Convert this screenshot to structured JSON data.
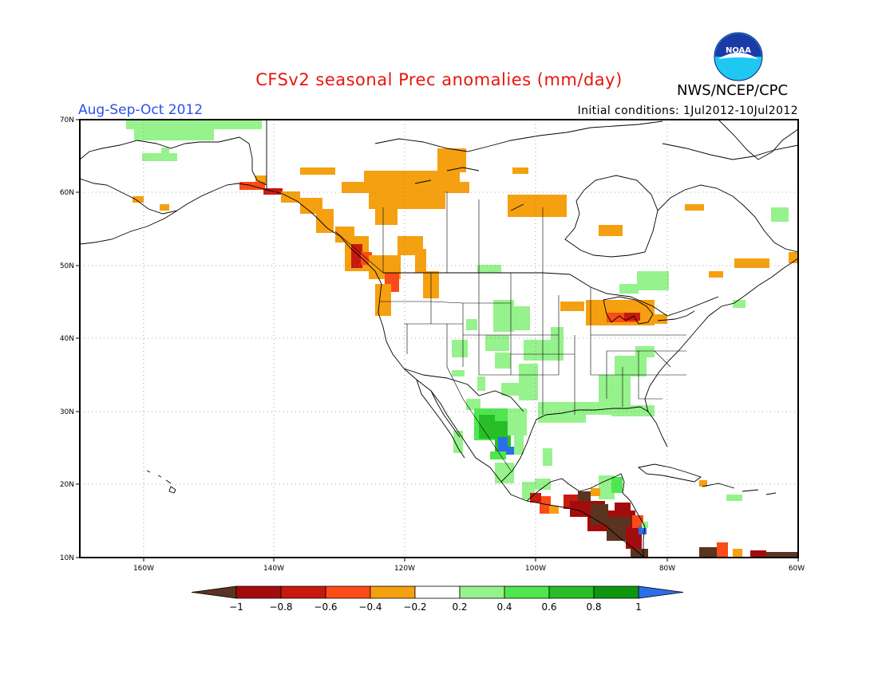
{
  "figure": {
    "title": "CFSv2 seasonal Prec anomalies (mm/day)",
    "season": "Aug-Sep-Oct 2012",
    "initial_conditions": "Initial conditions: 1Jul2012-10Jul2012",
    "agency": "NWS/NCEP/CPC",
    "logo_text": "NOAA"
  },
  "map": {
    "lon_range": [
      -172,
      -60
    ],
    "lat_range": [
      10,
      70
    ],
    "lat_labels": [
      "70N",
      "60N",
      "50N",
      "40N",
      "30N",
      "20N",
      "10N"
    ],
    "lon_labels": [
      "160W",
      "140W",
      "120W",
      "100W",
      "80W",
      "60W"
    ]
  },
  "colorbar": {
    "labels": [
      "-1",
      "-0.8",
      "-0.6",
      "-0.4",
      "-0.2",
      "0.2",
      "0.4",
      "0.6",
      "0.8",
      "1"
    ],
    "colors": [
      "#5a3420",
      "#a30c0c",
      "#c8190f",
      "#fa4b18",
      "#f5a010",
      "#ffffff",
      "#96f28c",
      "#50e650",
      "#28be28",
      "#0f960f",
      "#2a6fe8"
    ]
  }
}
